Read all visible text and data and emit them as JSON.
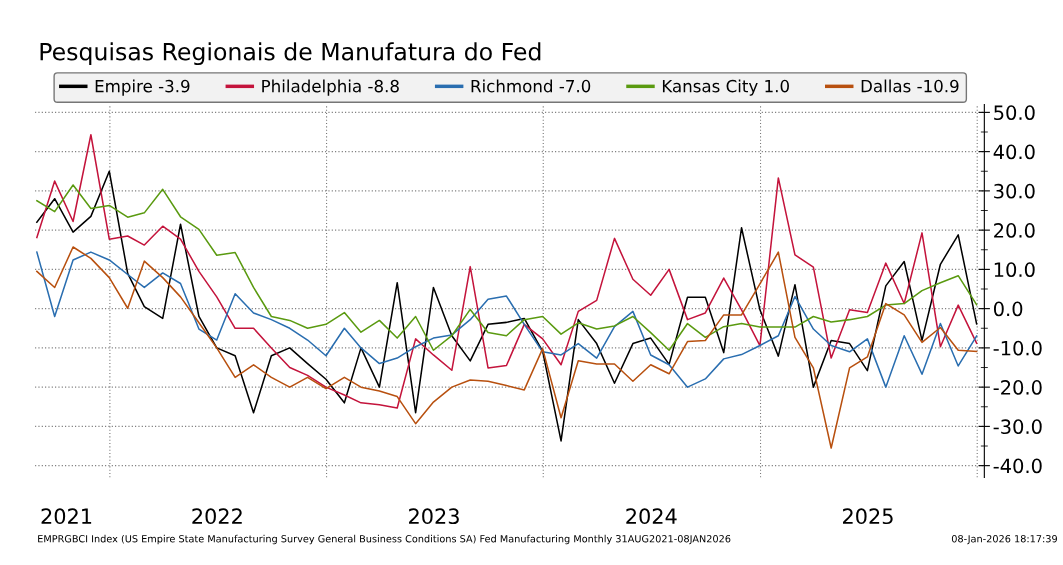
{
  "chart_data": {
    "type": "line",
    "title": "Pesquisas Regionais de Manufatura do Fed",
    "x": [
      "2021-08-31",
      "2021-09-30",
      "2021-10-31",
      "2021-11-30",
      "2021-12-31",
      "2022-01-31",
      "2022-02-28",
      "2022-03-31",
      "2022-04-30",
      "2022-05-31",
      "2022-06-30",
      "2022-07-31",
      "2022-08-31",
      "2022-09-30",
      "2022-10-31",
      "2022-11-30",
      "2022-12-31",
      "2023-01-31",
      "2023-02-28",
      "2023-03-31",
      "2023-04-30",
      "2023-05-31",
      "2023-06-30",
      "2023-07-31",
      "2023-08-31",
      "2023-09-30",
      "2023-10-31",
      "2023-11-30",
      "2023-12-31",
      "2024-01-31",
      "2024-02-29",
      "2024-03-31",
      "2024-04-30",
      "2024-05-31",
      "2024-06-30",
      "2024-07-31",
      "2024-08-31",
      "2024-09-30",
      "2024-10-31",
      "2024-11-30",
      "2024-12-31",
      "2025-01-31",
      "2025-02-28",
      "2025-03-31",
      "2025-04-30",
      "2025-05-31",
      "2025-06-30",
      "2025-07-31",
      "2025-08-31",
      "2025-09-30",
      "2025-10-31",
      "2025-11-30",
      "2025-12-31"
    ],
    "series": [
      {
        "name": "Empire -3.9",
        "color": "#000000",
        "values": [
          22,
          28,
          19.5,
          23.5,
          35,
          9,
          0.5,
          -2.5,
          21.5,
          -2,
          -10,
          -12,
          -26.5,
          -12,
          -10,
          -14,
          -18,
          -24,
          -10,
          -20,
          6.6,
          -26.5,
          5.4,
          -6.9,
          -13.3,
          -4,
          -3.5,
          -2.5,
          -10.9,
          -33.7,
          -2.8,
          -8.9,
          -19,
          -8.9,
          -7.5,
          -14.2,
          2.9,
          2.9,
          -11.2,
          20.6,
          -0.3,
          -12.1,
          6.1,
          -20,
          -8.1,
          -8.9,
          -15.8,
          5.8,
          12,
          -8.1,
          11.3,
          18.8,
          -3.9
        ]
      },
      {
        "name": "Philadelphia -8.8",
        "color": "#c4143c",
        "values": [
          18.1,
          32.5,
          22.2,
          44.3,
          17.7,
          18.5,
          16.2,
          21,
          17.7,
          9.5,
          3,
          -5,
          -5,
          -10,
          -15,
          -17,
          -20,
          -22,
          -24,
          -24.5,
          -25.3,
          -7.7,
          -11.8,
          -15.7,
          10.7,
          -15.1,
          -14.5,
          -4,
          -7.7,
          -14.3,
          -0.7,
          2.1,
          17.9,
          7.5,
          3.4,
          10,
          -2.8,
          -1.1,
          7.8,
          -0.3,
          -9.4,
          33.3,
          13.7,
          10.6,
          -12.6,
          -0.3,
          -1,
          11.6,
          1.3,
          19.3,
          -9.7,
          0.9,
          -8.8
        ]
      },
      {
        "name": "Richmond -7.0",
        "color": "#2a6eb0",
        "values": [
          14.4,
          -2,
          12.4,
          14.4,
          12.4,
          8.7,
          5.4,
          9.1,
          6.4,
          -5.2,
          -8,
          3.8,
          -1.1,
          -2.8,
          -5,
          -8,
          -12,
          -5,
          -10,
          -14,
          -12.6,
          -9.7,
          -7.5,
          -6.7,
          -2.8,
          2.4,
          3.2,
          -4,
          -11,
          -11.8,
          -8.9,
          -12.6,
          -4.6,
          -0.7,
          -11.8,
          -14.3,
          -20,
          -17.9,
          -12.8,
          -11.7,
          -9.4,
          -6.9,
          3.1,
          -5.2,
          -9.4,
          -11,
          -7.7,
          -20,
          -6.9,
          -16.7,
          -3.8,
          -14.6,
          -7.0
        ]
      },
      {
        "name": "Kansas City 1.0",
        "color": "#5a9a10",
        "values": [
          27.5,
          24.7,
          31.5,
          25.5,
          26.3,
          23.3,
          24.4,
          30.4,
          23.4,
          20.2,
          13.6,
          14.3,
          5.4,
          -2,
          -3,
          -5,
          -4,
          -1,
          -6,
          -3,
          -7.5,
          -2,
          -10.6,
          -6.9,
          -0.2,
          -6.1,
          -6.9,
          -2.8,
          -2,
          -6.5,
          -3.6,
          -5.2,
          -4.4,
          -2,
          -6.1,
          -10.6,
          -3.8,
          -7.3,
          -4.6,
          -3.8,
          -4.7,
          -4.7,
          -4.7,
          -2,
          -3.4,
          -2.8,
          -2,
          0.9,
          1.3,
          4.6,
          6.6,
          8.4,
          1.0
        ]
      },
      {
        "name": "Dallas -10.9",
        "color": "#b8500f",
        "values": [
          9.5,
          5.4,
          15.7,
          12.8,
          7.9,
          0.1,
          12.1,
          7.9,
          3,
          -3.6,
          -10,
          -17.5,
          -14.3,
          -17.5,
          -20,
          -17.5,
          -20.4,
          -17.5,
          -20,
          -21,
          -22.4,
          -29.3,
          -23.8,
          -20,
          -18.2,
          -18.5,
          -19.6,
          -20.7,
          -10.2,
          -27.8,
          -13.3,
          -14.1,
          -14.1,
          -18.5,
          -14.3,
          -16.6,
          -8.4,
          -8.1,
          -1.6,
          -1.6,
          6.3,
          14.4,
          -7.3,
          -15.1,
          -35.5,
          -15.1,
          -12.3,
          1.3,
          -1.6,
          -8.6,
          -4.8,
          -10.6,
          -10.9
        ]
      }
    ],
    "xlim": [
      "2021-08-28",
      "2026-01-13"
    ],
    "xticks": [
      {
        "value": "2022-01-01",
        "label": null
      },
      {
        "value": "2023-01-01",
        "label": null
      },
      {
        "value": "2024-01-01",
        "label": null
      },
      {
        "value": "2025-01-01",
        "label": null
      },
      {
        "value": "2026-01-01",
        "label": null
      },
      {
        "value": "2021-10-20",
        "label": "2021"
      },
      {
        "value": "2022-07-01",
        "label": "2022"
      },
      {
        "value": "2023-07-01",
        "label": "2023"
      },
      {
        "value": "2024-07-01",
        "label": "2024"
      },
      {
        "value": "2025-07-01",
        "label": "2025"
      }
    ],
    "ylim": [
      -43,
      52
    ],
    "yticks": [
      {
        "value": 50,
        "label": "50.0"
      },
      {
        "value": 40,
        "label": "40.0"
      },
      {
        "value": 30,
        "label": "30.0"
      },
      {
        "value": 20,
        "label": "20.0"
      },
      {
        "value": 10,
        "label": "10.0"
      },
      {
        "value": 0,
        "label": "0.0"
      },
      {
        "value": -10,
        "label": "-10.0"
      },
      {
        "value": -20,
        "label": "-20.0"
      },
      {
        "value": -30,
        "label": "-30.0"
      },
      {
        "value": -40,
        "label": "-40.0"
      }
    ],
    "grid": true,
    "legend": "top",
    "marker": "none",
    "line_style": "solid",
    "annotations": [
      "EMPRGBCI Index (US Empire State Manufacturing Survey General Business Conditions SA) Fed Manufacturing Monthly 31AUG2021-08JAN2026",
      "08-Jan-2026 18:17:39"
    ]
  }
}
